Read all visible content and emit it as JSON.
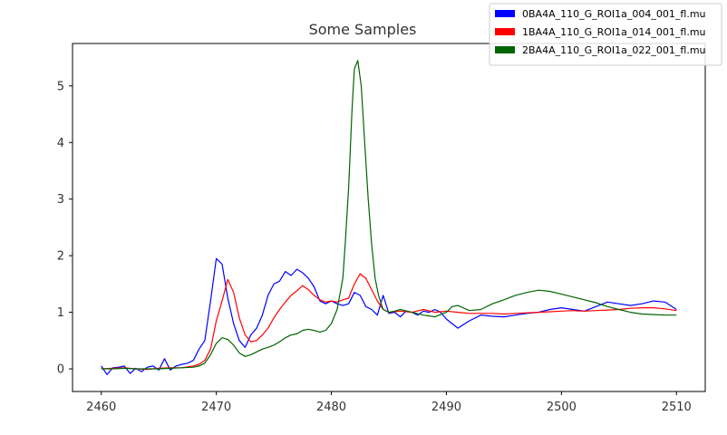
{
  "chart_data": {
    "type": "line",
    "title": "Some Samples",
    "xlabel": "",
    "ylabel": "",
    "xlim": [
      2457.5,
      2512.5
    ],
    "ylim": [
      -0.4,
      5.75
    ],
    "xticks": [
      2460,
      2470,
      2480,
      2490,
      2500,
      2510
    ],
    "yticks": [
      0,
      1,
      2,
      3,
      4,
      5
    ],
    "grid": false,
    "legend_position": "top-right",
    "series": [
      {
        "name": "0BA4A_110_G_ROI1a_004_001_fl.mu",
        "color": "#0000ff",
        "x": [
          2460,
          2460.5,
          2461,
          2461.5,
          2462,
          2462.5,
          2463,
          2463.5,
          2464,
          2464.5,
          2465,
          2465.5,
          2466,
          2466.5,
          2467,
          2467.5,
          2468,
          2468.5,
          2469,
          2469.5,
          2470,
          2470.5,
          2471,
          2471.5,
          2472,
          2472.5,
          2473,
          2473.5,
          2474,
          2474.5,
          2475,
          2475.5,
          2476,
          2476.5,
          2477,
          2477.5,
          2478,
          2478.5,
          2479,
          2479.5,
          2480,
          2480.5,
          2481,
          2481.5,
          2482,
          2482.5,
          2483,
          2483.5,
          2484,
          2484.5,
          2485,
          2485.5,
          2486,
          2486.5,
          2487,
          2487.5,
          2488,
          2488.5,
          2489,
          2489.5,
          2490,
          2491,
          2492,
          2493,
          2494,
          2495,
          2496,
          2497,
          2498,
          2499,
          2500,
          2501,
          2502,
          2503,
          2504,
          2505,
          2506,
          2507,
          2508,
          2509,
          2510
        ],
        "values": [
          0.05,
          -0.1,
          0.02,
          0.03,
          0.05,
          -0.08,
          0.01,
          -0.05,
          0.03,
          0.05,
          -0.02,
          0.18,
          -0.02,
          0.05,
          0.08,
          0.1,
          0.15,
          0.35,
          0.5,
          1.2,
          1.95,
          1.85,
          1.25,
          0.8,
          0.5,
          0.38,
          0.6,
          0.72,
          0.95,
          1.3,
          1.5,
          1.55,
          1.72,
          1.65,
          1.76,
          1.7,
          1.6,
          1.45,
          1.2,
          1.15,
          1.2,
          1.15,
          1.12,
          1.15,
          1.35,
          1.3,
          1.1,
          1.05,
          0.95,
          1.3,
          0.98,
          1.0,
          0.92,
          1.02,
          1.0,
          0.95,
          1.02,
          1.0,
          1.05,
          1.0,
          0.88,
          0.72,
          0.85,
          0.95,
          0.93,
          0.92,
          0.95,
          0.98,
          1.0,
          1.05,
          1.08,
          1.05,
          1.02,
          1.1,
          1.18,
          1.15,
          1.12,
          1.15,
          1.2,
          1.18,
          1.05
        ]
      },
      {
        "name": "1BA4A_110_G_ROI1a_014_001_fl.mu",
        "color": "#ff0000",
        "x": [
          2460,
          2461,
          2462,
          2463,
          2464,
          2465,
          2466,
          2467,
          2468,
          2468.5,
          2469,
          2469.5,
          2470,
          2470.5,
          2471,
          2471.5,
          2472,
          2472.5,
          2473,
          2473.5,
          2474,
          2474.5,
          2475,
          2475.5,
          2476,
          2476.5,
          2477,
          2477.5,
          2478,
          2478.5,
          2479,
          2479.5,
          2480,
          2480.5,
          2481,
          2481.5,
          2482,
          2482.5,
          2483,
          2483.5,
          2484,
          2484.5,
          2485,
          2486,
          2487,
          2488,
          2489,
          2490,
          2491,
          2492,
          2493,
          2494,
          2495,
          2496,
          2497,
          2498,
          2499,
          2500,
          2501,
          2502,
          2503,
          2504,
          2505,
          2506,
          2507,
          2508,
          2509,
          2510
        ],
        "values": [
          0.0,
          0.01,
          0.02,
          0.0,
          -0.01,
          0.01,
          0.02,
          0.02,
          0.05,
          0.08,
          0.15,
          0.35,
          0.85,
          1.2,
          1.58,
          1.35,
          0.9,
          0.6,
          0.48,
          0.5,
          0.6,
          0.72,
          0.9,
          1.05,
          1.18,
          1.3,
          1.38,
          1.47,
          1.4,
          1.3,
          1.22,
          1.18,
          1.2,
          1.18,
          1.22,
          1.25,
          1.5,
          1.68,
          1.6,
          1.4,
          1.2,
          1.05,
          1.0,
          1.02,
          1.0,
          1.05,
          1.0,
          1.02,
          1.0,
          0.98,
          0.98,
          0.98,
          0.97,
          0.98,
          0.99,
          1.0,
          1.01,
          1.02,
          1.03,
          1.02,
          1.03,
          1.04,
          1.05,
          1.07,
          1.08,
          1.08,
          1.06,
          1.03
        ]
      },
      {
        "name": "2BA4A_110_G_ROI1a_022_001_fl.mu",
        "color": "#006400",
        "x": [
          2460,
          2461,
          2462,
          2463,
          2464,
          2465,
          2466,
          2467,
          2468,
          2468.5,
          2469,
          2469.5,
          2470,
          2470.5,
          2471,
          2471.5,
          2472,
          2472.5,
          2473,
          2473.5,
          2474,
          2474.5,
          2475,
          2475.5,
          2476,
          2476.5,
          2477,
          2477.5,
          2478,
          2478.5,
          2479,
          2479.5,
          2480,
          2480.5,
          2481,
          2481.2,
          2481.5,
          2481.8,
          2482,
          2482.3,
          2482.6,
          2482.9,
          2483.2,
          2483.5,
          2483.8,
          2484.1,
          2484.5,
          2485,
          2485.5,
          2486,
          2487,
          2488,
          2489,
          2490,
          2490.5,
          2491,
          2492,
          2493,
          2494,
          2495,
          2496,
          2497,
          2498,
          2499,
          2500,
          2501,
          2502,
          2503,
          2504,
          2505,
          2506,
          2507,
          2508,
          2509,
          2510
        ],
        "values": [
          0.0,
          0.0,
          0.01,
          0.0,
          0.0,
          0.0,
          0.01,
          0.02,
          0.03,
          0.05,
          0.1,
          0.25,
          0.45,
          0.55,
          0.52,
          0.42,
          0.28,
          0.22,
          0.25,
          0.3,
          0.35,
          0.38,
          0.42,
          0.48,
          0.55,
          0.6,
          0.62,
          0.68,
          0.7,
          0.68,
          0.65,
          0.68,
          0.8,
          1.05,
          1.6,
          2.2,
          3.2,
          4.6,
          5.3,
          5.45,
          5.0,
          4.0,
          3.0,
          2.2,
          1.6,
          1.3,
          1.05,
          1.0,
          1.02,
          1.05,
          1.0,
          0.95,
          0.92,
          1.0,
          1.1,
          1.12,
          1.03,
          1.05,
          1.15,
          1.22,
          1.3,
          1.35,
          1.39,
          1.37,
          1.32,
          1.27,
          1.22,
          1.17,
          1.1,
          1.05,
          1.0,
          0.97,
          0.96,
          0.95,
          0.95
        ]
      }
    ]
  }
}
